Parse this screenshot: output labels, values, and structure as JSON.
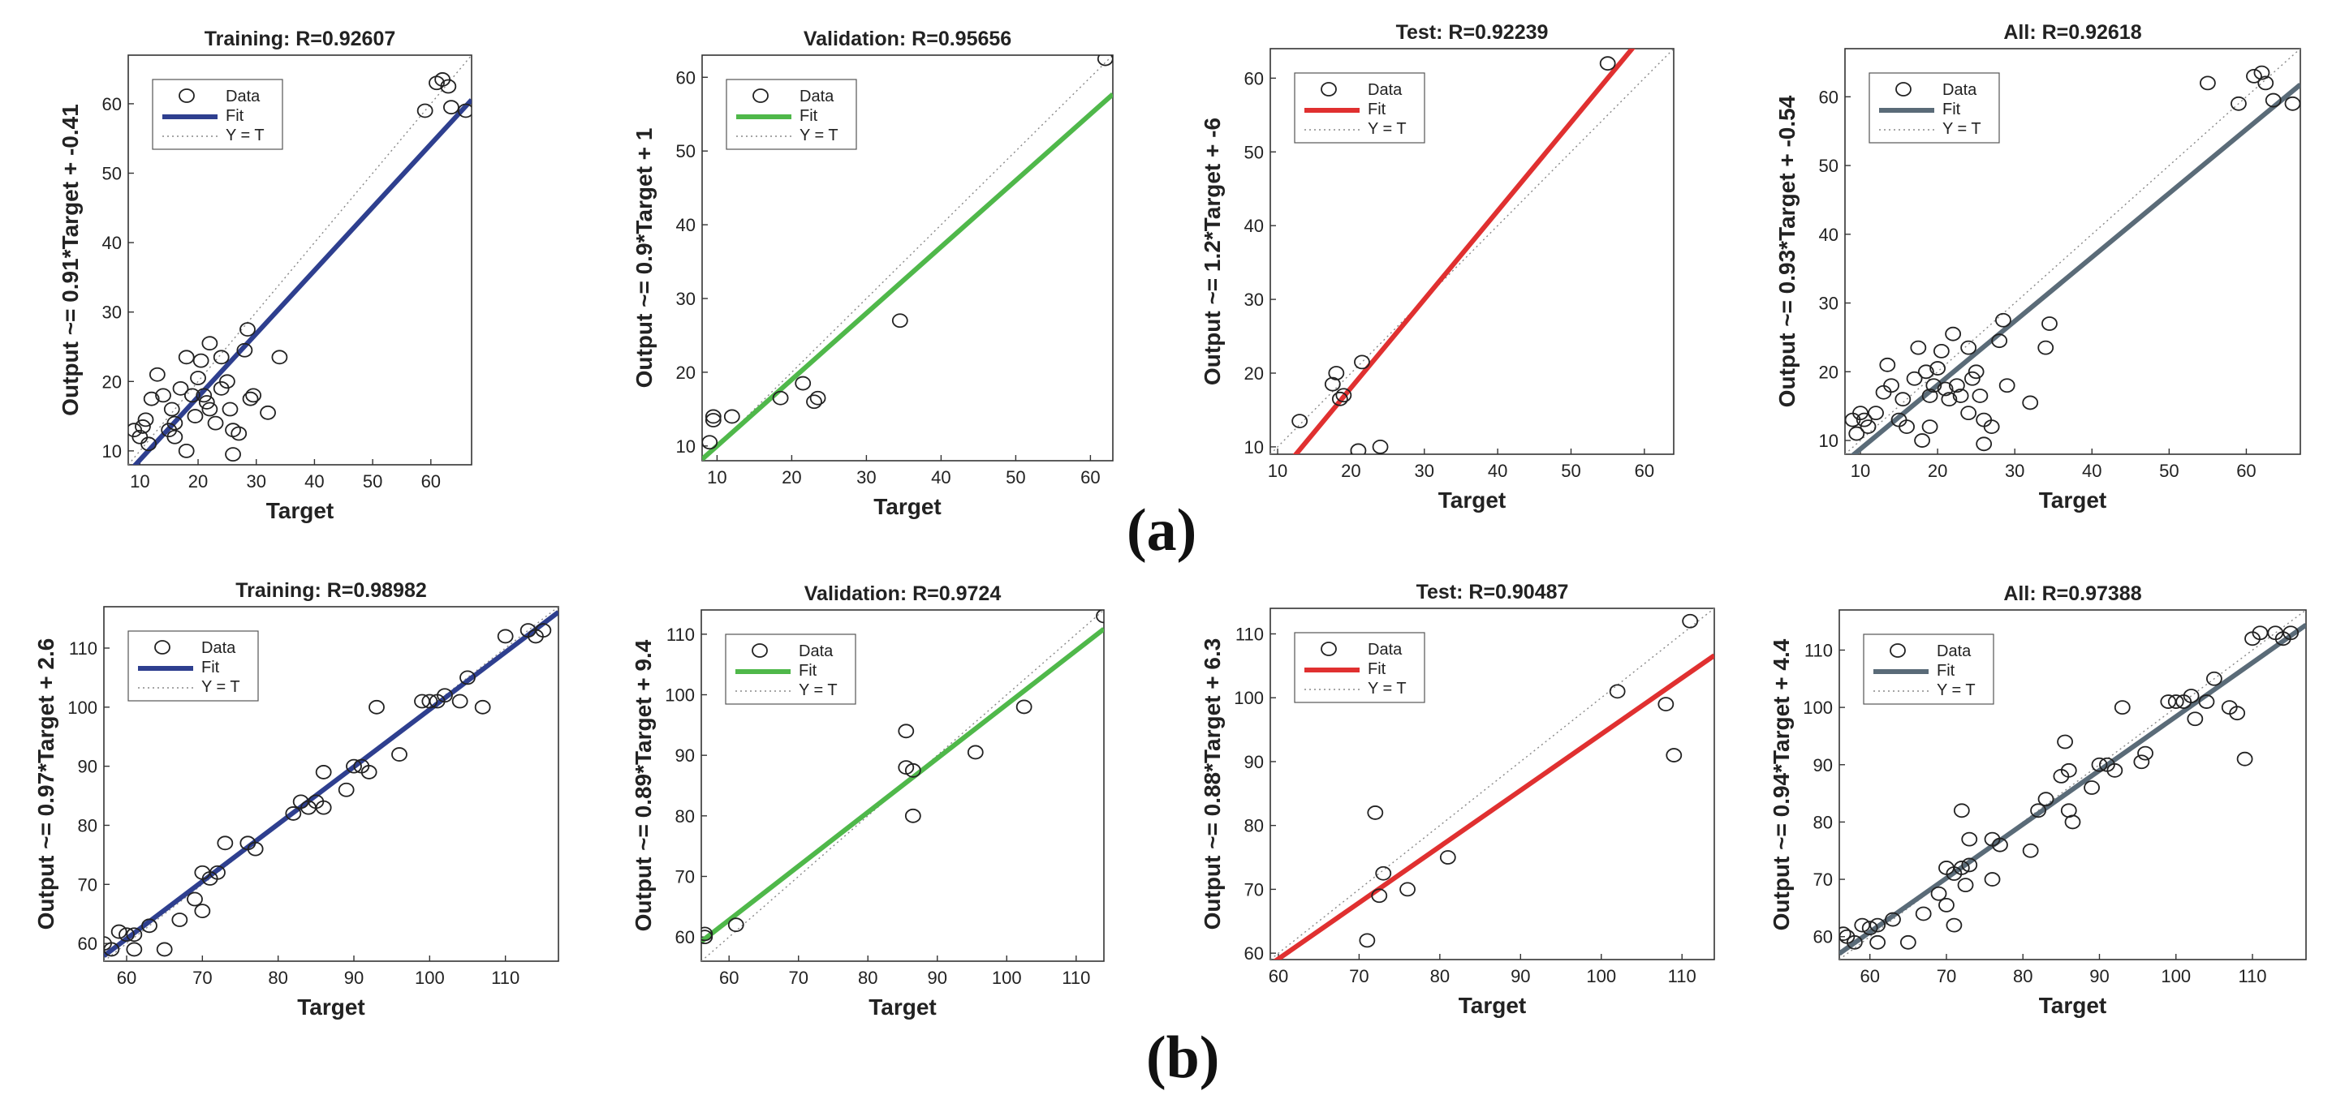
{
  "figure_labels": {
    "a": "(a)",
    "b": "(b)"
  },
  "chart_data": [
    {
      "type": "scatter",
      "row": "a",
      "title": "Training: R=0.92607",
      "xlabel": "Target",
      "ylabel": "Output ~= 0.91*Target + -0.41",
      "fit": {
        "slope": 0.91,
        "intercept": -0.41
      },
      "fit_color": "#2e3f8f",
      "xlim": [
        8,
        67
      ],
      "ylim": [
        8,
        67
      ],
      "xticks": [
        10,
        20,
        30,
        40,
        50,
        60
      ],
      "yticks": [
        10,
        20,
        30,
        40,
        50,
        60
      ],
      "legend": [
        "Data",
        "Fit",
        "Y = T"
      ],
      "points": [
        [
          9,
          13
        ],
        [
          10,
          12
        ],
        [
          10.5,
          13.5
        ],
        [
          11,
          14.5
        ],
        [
          11.5,
          11
        ],
        [
          12,
          17.5
        ],
        [
          13,
          21
        ],
        [
          14,
          18
        ],
        [
          15,
          13
        ],
        [
          15.5,
          16
        ],
        [
          16,
          14
        ],
        [
          16,
          12
        ],
        [
          17,
          19
        ],
        [
          18,
          23.5
        ],
        [
          18,
          10
        ],
        [
          19,
          18
        ],
        [
          19.5,
          15
        ],
        [
          20,
          20.5
        ],
        [
          20.5,
          23
        ],
        [
          21,
          18
        ],
        [
          21.5,
          17
        ],
        [
          22,
          25.5
        ],
        [
          22,
          16
        ],
        [
          23,
          14
        ],
        [
          24,
          23.5
        ],
        [
          24,
          19
        ],
        [
          25,
          20
        ],
        [
          25.5,
          16
        ],
        [
          26,
          13
        ],
        [
          26,
          9.5
        ],
        [
          27,
          12.5
        ],
        [
          28,
          24.5
        ],
        [
          28.5,
          27.5
        ],
        [
          29,
          17.5
        ],
        [
          29.5,
          18
        ],
        [
          32,
          15.5
        ],
        [
          34,
          23.5
        ],
        [
          59,
          59
        ],
        [
          61,
          63
        ],
        [
          62,
          63.5
        ],
        [
          63,
          62.5
        ],
        [
          63.5,
          59.5
        ],
        [
          66,
          59
        ]
      ]
    },
    {
      "type": "scatter",
      "row": "a",
      "title": "Validation: R=0.95656",
      "xlabel": "Target",
      "ylabel": "Output ~= 0.9*Target + 1",
      "fit": {
        "slope": 0.9,
        "intercept": 1
      },
      "fit_color": "#4fb84a",
      "xlim": [
        8,
        63
      ],
      "ylim": [
        8,
        63
      ],
      "xticks": [
        10,
        20,
        30,
        40,
        50,
        60
      ],
      "yticks": [
        10,
        20,
        30,
        40,
        50,
        60
      ],
      "legend": [
        "Data",
        "Fit",
        "Y = T"
      ],
      "points": [
        [
          9,
          10.5
        ],
        [
          9.5,
          13.5
        ],
        [
          9.5,
          14
        ],
        [
          12,
          14
        ],
        [
          18.5,
          16.5
        ],
        [
          21.5,
          18.5
        ],
        [
          23,
          16
        ],
        [
          23.5,
          16.5
        ],
        [
          34.5,
          27
        ],
        [
          62,
          62.5
        ]
      ]
    },
    {
      "type": "scatter",
      "row": "a",
      "title": "Test: R=0.92239",
      "xlabel": "Target",
      "ylabel": "Output ~= 1.2*Target + -6",
      "fit": {
        "slope": 1.2,
        "intercept": -6
      },
      "fit_color": "#e03030",
      "xlim": [
        9,
        64
      ],
      "ylim": [
        9,
        64
      ],
      "xticks": [
        10,
        20,
        30,
        40,
        50,
        60
      ],
      "yticks": [
        10,
        20,
        30,
        40,
        50,
        60
      ],
      "legend": [
        "Data",
        "Fit",
        "Y = T"
      ],
      "points": [
        [
          13,
          13.5
        ],
        [
          17.5,
          18.5
        ],
        [
          18,
          20
        ],
        [
          18.5,
          16.5
        ],
        [
          19,
          17
        ],
        [
          21,
          9.5
        ],
        [
          21.5,
          21.5
        ],
        [
          24,
          10
        ],
        [
          55,
          62
        ]
      ]
    },
    {
      "type": "scatter",
      "row": "a",
      "title": "All: R=0.92618",
      "xlabel": "Target",
      "ylabel": "Output ~= 0.93*Target + -0.54",
      "fit": {
        "slope": 0.93,
        "intercept": -0.54
      },
      "fit_color": "#5a6b78",
      "xlim": [
        8,
        67
      ],
      "ylim": [
        8,
        67
      ],
      "xticks": [
        10,
        20,
        30,
        40,
        50,
        60
      ],
      "yticks": [
        10,
        20,
        30,
        40,
        50,
        60
      ],
      "legend": [
        "Data",
        "Fit",
        "Y = T"
      ],
      "points": [
        [
          9,
          13
        ],
        [
          9.5,
          11
        ],
        [
          10,
          14
        ],
        [
          10.5,
          13
        ],
        [
          11,
          12
        ],
        [
          12,
          14
        ],
        [
          13,
          17
        ],
        [
          13.5,
          21
        ],
        [
          14,
          18
        ],
        [
          15,
          13
        ],
        [
          15.5,
          16
        ],
        [
          16,
          12
        ],
        [
          17,
          19
        ],
        [
          17.5,
          23.5
        ],
        [
          18,
          10
        ],
        [
          18.5,
          20
        ],
        [
          19,
          16.5
        ],
        [
          19,
          12
        ],
        [
          19.5,
          18
        ],
        [
          20,
          20.5
        ],
        [
          20.5,
          23
        ],
        [
          21,
          17.5
        ],
        [
          21.5,
          16
        ],
        [
          22,
          25.5
        ],
        [
          22.5,
          18
        ],
        [
          23,
          16.5
        ],
        [
          24,
          14
        ],
        [
          24,
          23.5
        ],
        [
          24.5,
          19
        ],
        [
          25,
          20
        ],
        [
          25.5,
          16.5
        ],
        [
          26,
          13
        ],
        [
          26,
          9.5
        ],
        [
          27,
          12
        ],
        [
          28,
          24.5
        ],
        [
          28.5,
          27.5
        ],
        [
          29,
          18
        ],
        [
          32,
          15.5
        ],
        [
          34,
          23.5
        ],
        [
          34.5,
          27
        ],
        [
          55,
          62
        ],
        [
          59,
          59
        ],
        [
          61,
          63
        ],
        [
          62,
          63.5
        ],
        [
          62.5,
          62
        ],
        [
          63.5,
          59.5
        ],
        [
          66,
          59
        ]
      ]
    },
    {
      "type": "scatter",
      "row": "b",
      "title": "Training: R=0.98982",
      "xlabel": "Target",
      "ylabel": "Output ~= 0.97*Target + 2.6",
      "fit": {
        "slope": 0.97,
        "intercept": 2.6
      },
      "fit_color": "#2e3f8f",
      "xlim": [
        57,
        117
      ],
      "ylim": [
        57,
        117
      ],
      "xticks": [
        60,
        70,
        80,
        90,
        100,
        110
      ],
      "yticks": [
        60,
        70,
        80,
        90,
        100,
        110
      ],
      "legend": [
        "Data",
        "Fit",
        "Y = T"
      ],
      "points": [
        [
          57,
          60
        ],
        [
          58,
          59
        ],
        [
          59,
          62
        ],
        [
          60,
          61.5
        ],
        [
          61,
          61.5
        ],
        [
          61,
          59
        ],
        [
          63,
          63
        ],
        [
          65,
          59
        ],
        [
          67,
          64
        ],
        [
          69,
          67.5
        ],
        [
          70,
          65.5
        ],
        [
          70,
          72
        ],
        [
          71,
          71
        ],
        [
          72,
          72
        ],
        [
          73,
          77
        ],
        [
          76,
          77
        ],
        [
          77,
          76
        ],
        [
          82,
          82
        ],
        [
          83,
          84
        ],
        [
          84,
          83
        ],
        [
          85,
          84
        ],
        [
          86,
          89
        ],
        [
          86,
          83
        ],
        [
          89,
          86
        ],
        [
          90,
          90
        ],
        [
          91,
          90
        ],
        [
          92,
          89
        ],
        [
          93,
          100
        ],
        [
          96,
          92
        ],
        [
          99,
          101
        ],
        [
          100,
          101
        ],
        [
          101,
          101
        ],
        [
          102,
          102
        ],
        [
          104,
          101
        ],
        [
          105,
          105
        ],
        [
          107,
          100
        ],
        [
          110,
          112
        ],
        [
          113,
          113
        ],
        [
          114,
          112
        ],
        [
          115,
          113
        ]
      ]
    },
    {
      "type": "scatter",
      "row": "b",
      "title": "Validation: R=0.9724",
      "xlabel": "Target",
      "ylabel": "Output ~= 0.89*Target + 9.4",
      "fit": {
        "slope": 0.89,
        "intercept": 9.4
      },
      "fit_color": "#4fb84a",
      "xlim": [
        56,
        114
      ],
      "ylim": [
        56,
        114
      ],
      "xticks": [
        60,
        70,
        80,
        90,
        100,
        110
      ],
      "yticks": [
        60,
        70,
        80,
        90,
        100,
        110
      ],
      "legend": [
        "Data",
        "Fit",
        "Y = T"
      ],
      "points": [
        [
          56.5,
          60.5
        ],
        [
          56.5,
          60
        ],
        [
          61,
          62
        ],
        [
          85.5,
          94
        ],
        [
          85.5,
          88
        ],
        [
          86.5,
          80
        ],
        [
          86.5,
          87.5
        ],
        [
          95.5,
          90.5
        ],
        [
          102.5,
          98
        ],
        [
          114,
          113
        ]
      ]
    },
    {
      "type": "scatter",
      "row": "b",
      "title": "Test: R=0.90487",
      "xlabel": "Target",
      "ylabel": "Output ~= 0.88*Target + 6.3",
      "fit": {
        "slope": 0.88,
        "intercept": 6.3
      },
      "fit_color": "#e03030",
      "xlim": [
        59,
        114
      ],
      "ylim": [
        59,
        114
      ],
      "xticks": [
        60,
        70,
        80,
        90,
        100,
        110
      ],
      "yticks": [
        60,
        70,
        80,
        90,
        100,
        110
      ],
      "legend": [
        "Data",
        "Fit",
        "Y = T"
      ],
      "points": [
        [
          71,
          62
        ],
        [
          72,
          82
        ],
        [
          72.5,
          69
        ],
        [
          73,
          72.5
        ],
        [
          76,
          70
        ],
        [
          81,
          75
        ],
        [
          102,
          101
        ],
        [
          108,
          99
        ],
        [
          109,
          91
        ],
        [
          111,
          112
        ]
      ]
    },
    {
      "type": "scatter",
      "row": "b",
      "title": "All: R=0.97388",
      "xlabel": "Target",
      "ylabel": "Output ~= 0.94*Target + 4.4",
      "fit": {
        "slope": 0.94,
        "intercept": 4.4
      },
      "fit_color": "#5a6b78",
      "xlim": [
        56,
        117
      ],
      "ylim": [
        56,
        117
      ],
      "xticks": [
        60,
        70,
        80,
        90,
        100,
        110
      ],
      "yticks": [
        60,
        70,
        80,
        90,
        100,
        110
      ],
      "legend": [
        "Data",
        "Fit",
        "Y = T"
      ],
      "points": [
        [
          56.5,
          60.5
        ],
        [
          57,
          60
        ],
        [
          58,
          59
        ],
        [
          59,
          62
        ],
        [
          60,
          61.5
        ],
        [
          61,
          62
        ],
        [
          61,
          59
        ],
        [
          63,
          63
        ],
        [
          65,
          59
        ],
        [
          67,
          64
        ],
        [
          69,
          67.5
        ],
        [
          70,
          65.5
        ],
        [
          70,
          72
        ],
        [
          71,
          71
        ],
        [
          71,
          62
        ],
        [
          72,
          82
        ],
        [
          72,
          72
        ],
        [
          72.5,
          69
        ],
        [
          73,
          72.5
        ],
        [
          73,
          77
        ],
        [
          76,
          77
        ],
        [
          76,
          70
        ],
        [
          77,
          76
        ],
        [
          81,
          75
        ],
        [
          82,
          82
        ],
        [
          83,
          84
        ],
        [
          85,
          88
        ],
        [
          85.5,
          94
        ],
        [
          86,
          89
        ],
        [
          86,
          82
        ],
        [
          86.5,
          80
        ],
        [
          89,
          86
        ],
        [
          90,
          90
        ],
        [
          91,
          90
        ],
        [
          92,
          89
        ],
        [
          93,
          100
        ],
        [
          95.5,
          90.5
        ],
        [
          96,
          92
        ],
        [
          99,
          101
        ],
        [
          100,
          101
        ],
        [
          101,
          101
        ],
        [
          102,
          102
        ],
        [
          102.5,
          98
        ],
        [
          104,
          101
        ],
        [
          105,
          105
        ],
        [
          107,
          100
        ],
        [
          108,
          99
        ],
        [
          109,
          91
        ],
        [
          110,
          112
        ],
        [
          111,
          113
        ],
        [
          113,
          113
        ],
        [
          114,
          112
        ],
        [
          115,
          113
        ]
      ]
    }
  ]
}
